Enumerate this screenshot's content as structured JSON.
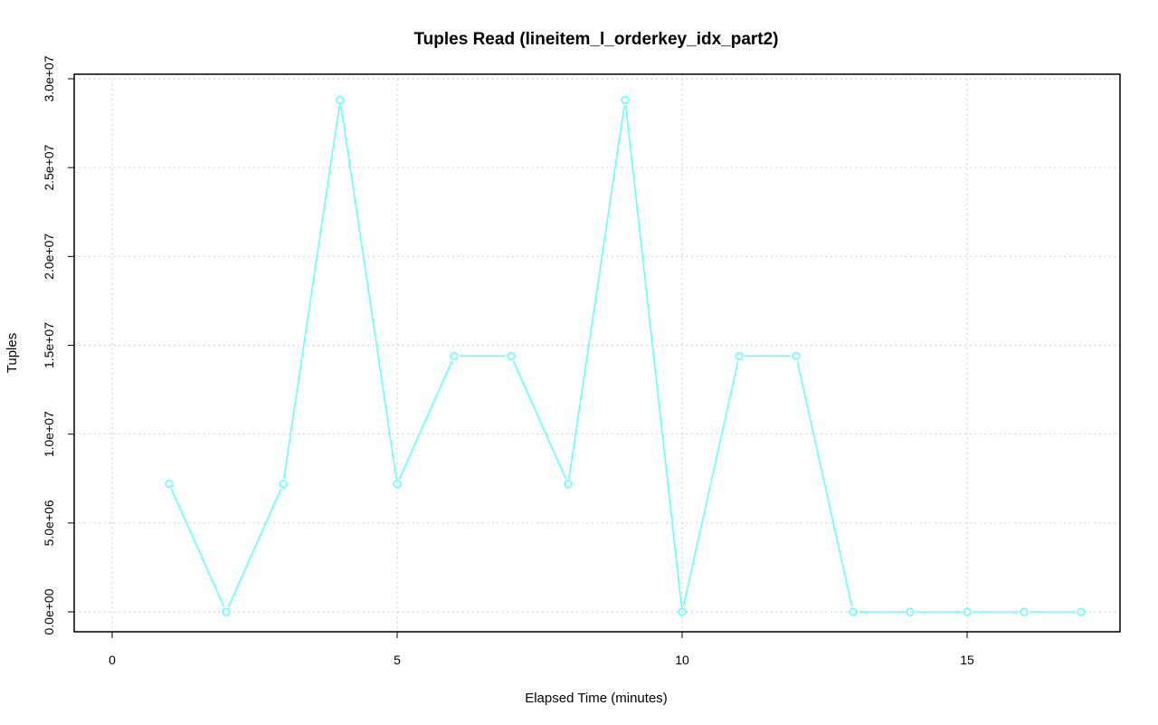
{
  "chart_data": {
    "type": "line",
    "title": "Tuples Read (lineitem_l_orderkey_idx_part2)",
    "xlabel": "Elapsed Time (minutes)",
    "ylabel": "Tuples",
    "xlim": [
      0,
      17
    ],
    "ylim": [
      0,
      30000000
    ],
    "x_ticks": [
      0,
      5,
      10,
      15
    ],
    "x_tick_labels": [
      "0",
      "5",
      "10",
      "15"
    ],
    "y_ticks": [
      0,
      5000000,
      10000000,
      15000000,
      20000000,
      25000000,
      30000000
    ],
    "y_tick_labels": [
      "0.0e+00",
      "5.0e+06",
      "1.0e+07",
      "1.5e+07",
      "2.0e+07",
      "2.5e+07",
      "3.0e+07"
    ],
    "grid": true,
    "series_color": "#66ffff",
    "series": [
      {
        "x": [
          1,
          2,
          3,
          4,
          5,
          6,
          7,
          8,
          9,
          10,
          11,
          12,
          13,
          14,
          15,
          16,
          17
        ],
        "values": [
          7200000,
          0,
          7200000,
          28800000,
          7200000,
          14400000,
          14400000,
          7200000,
          28800000,
          0,
          14400000,
          14400000,
          0,
          0,
          0,
          0,
          0
        ]
      }
    ]
  }
}
